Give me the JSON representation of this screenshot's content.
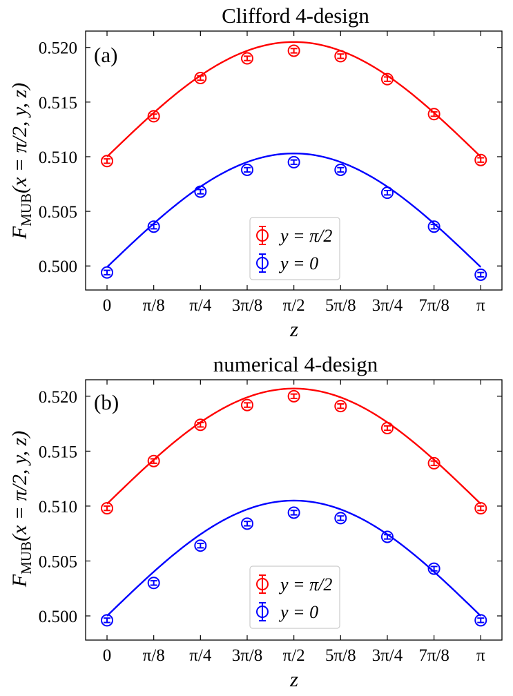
{
  "chart_data": [
    {
      "type": "scatter",
      "title": "Clifford 4-design",
      "panel_label": "(a)",
      "xlabel": "z",
      "ylabel_main": "F",
      "ylabel_sub": "MUB",
      "ylabel_args": "(x = π/2, y, z)",
      "ylim": [
        0.4978,
        0.5215
      ],
      "xlim": [
        -0.18,
        3.32
      ],
      "x_ticks": [
        0,
        0.3927,
        0.7854,
        1.1781,
        1.5708,
        1.9635,
        2.3562,
        2.7489,
        3.1416
      ],
      "x_tick_labels": [
        "0",
        "π/8",
        "π/4",
        "3π/8",
        "π/2",
        "5π/8",
        "3π/4",
        "7π/8",
        "π"
      ],
      "y_ticks": [
        0.5,
        0.505,
        0.51,
        0.515,
        0.52
      ],
      "y_tick_labels": [
        "0.500",
        "0.505",
        "0.510",
        "0.515",
        "0.520"
      ],
      "grid": false,
      "legend_position": "lower-center",
      "series": [
        {
          "name": "y = π/2",
          "color": "#ff0000",
          "values": [
            0.5096,
            0.5137,
            0.5172,
            0.519,
            0.5197,
            0.5192,
            0.5171,
            0.5139,
            0.5097
          ],
          "errors": [
            0.0002,
            0.0002,
            0.0002,
            0.0002,
            0.0002,
            0.0002,
            0.0002,
            0.0002,
            0.0002
          ],
          "curve_amplitude": 0.0105,
          "curve_offset": 0.51
        },
        {
          "name": "y = 0",
          "color": "#0000ff",
          "values": [
            0.4994,
            0.5036,
            0.5068,
            0.5088,
            0.5095,
            0.5088,
            0.5067,
            0.5036,
            0.4992
          ],
          "errors": [
            0.0002,
            0.0002,
            0.0002,
            0.0002,
            0.0002,
            0.0002,
            0.0002,
            0.0002,
            0.0002
          ],
          "curve_amplitude": 0.0104,
          "curve_offset": 0.4999
        }
      ]
    },
    {
      "type": "scatter",
      "title": "numerical 4-design",
      "panel_label": "(b)",
      "xlabel": "z",
      "ylabel_main": "F",
      "ylabel_sub": "MUB",
      "ylabel_args": "(x = π/2, y, z)",
      "ylim": [
        0.4978,
        0.5215
      ],
      "xlim": [
        -0.18,
        3.32
      ],
      "x_ticks": [
        0,
        0.3927,
        0.7854,
        1.1781,
        1.5708,
        1.9635,
        2.3562,
        2.7489,
        3.1416
      ],
      "x_tick_labels": [
        "0",
        "π/8",
        "π/4",
        "3π/8",
        "π/2",
        "5π/8",
        "3π/4",
        "7π/8",
        "π"
      ],
      "y_ticks": [
        0.5,
        0.505,
        0.51,
        0.515,
        0.52
      ],
      "y_tick_labels": [
        "0.500",
        "0.505",
        "0.510",
        "0.515",
        "0.520"
      ],
      "grid": false,
      "legend_position": "lower-center",
      "series": [
        {
          "name": "y = π/2",
          "color": "#ff0000",
          "values": [
            0.5098,
            0.5141,
            0.5174,
            0.5192,
            0.52,
            0.5191,
            0.5171,
            0.5139,
            0.5098
          ],
          "errors": [
            0.0002,
            0.0002,
            0.0002,
            0.0002,
            0.0002,
            0.0002,
            0.0002,
            0.0002,
            0.0002
          ],
          "curve_amplitude": 0.0105,
          "curve_offset": 0.5102
        },
        {
          "name": "y = 0",
          "color": "#0000ff",
          "values": [
            0.4996,
            0.503,
            0.5064,
            0.5084,
            0.5094,
            0.5089,
            0.5072,
            0.5043,
            0.4996
          ],
          "errors": [
            0.0002,
            0.0002,
            0.0002,
            0.0002,
            0.0002,
            0.0002,
            0.0002,
            0.0002,
            0.0002
          ],
          "curve_amplitude": 0.0105,
          "curve_offset": 0.5
        }
      ]
    }
  ]
}
